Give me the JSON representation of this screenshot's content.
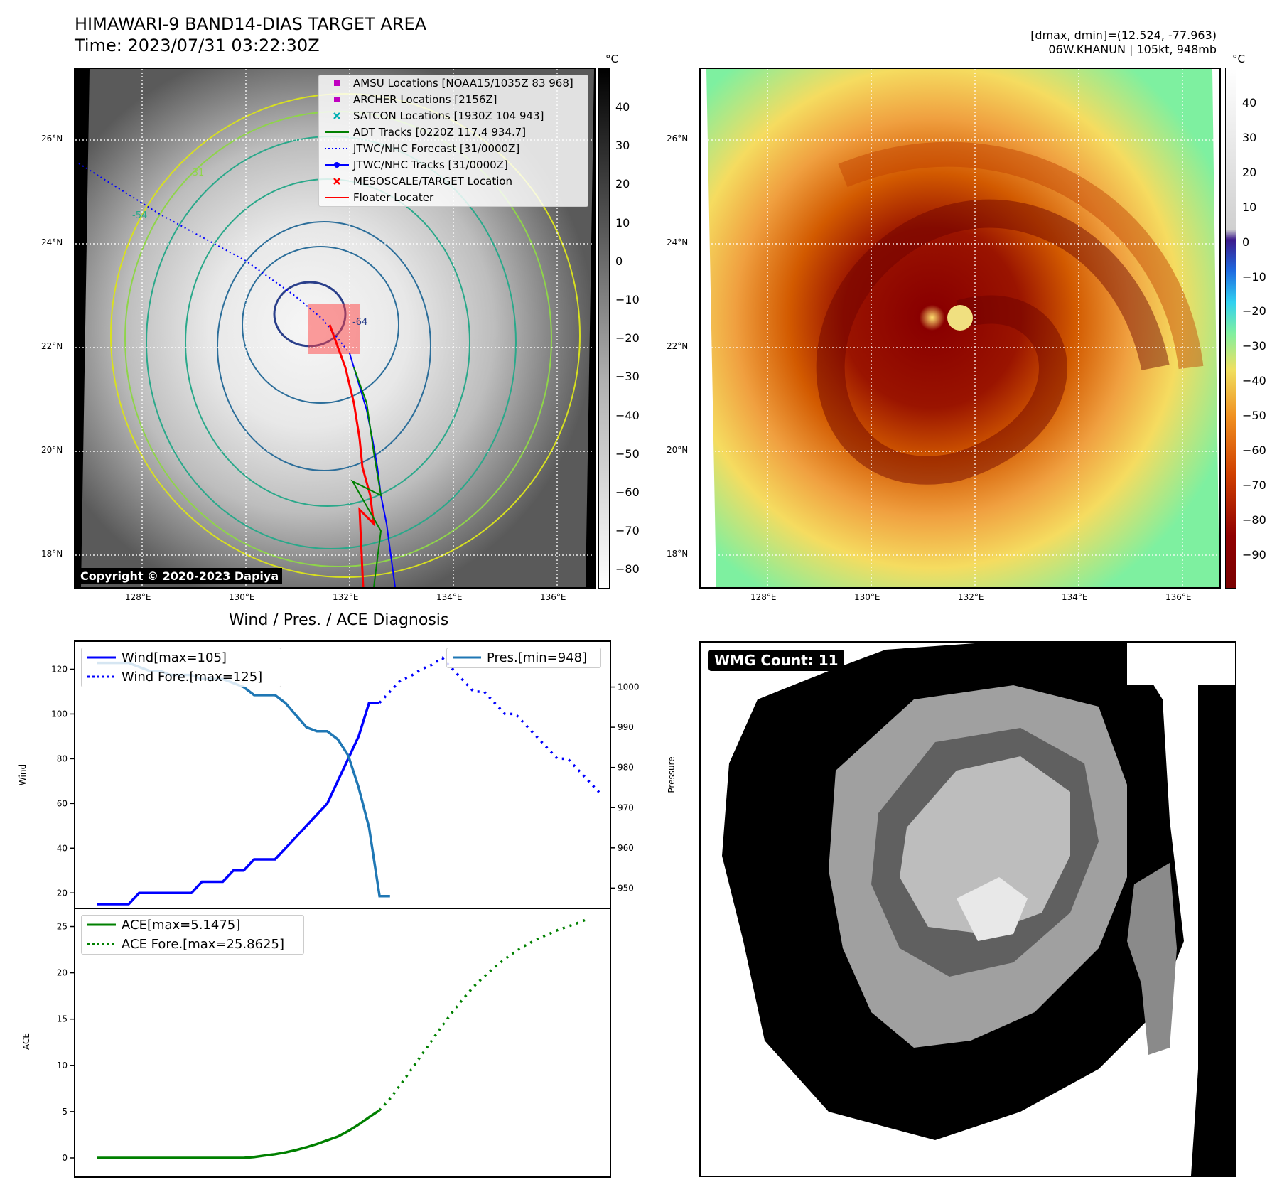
{
  "header": {
    "title_line1": "HIMAWARI-9 BAND14-DIAS TARGET AREA",
    "title_line2": "Time: 2023/07/31 03:22:30Z",
    "stats_line1": "[dmax, dmin]=(12.524, -77.963)",
    "stats_line2": "06W.KHANUN | 105kt, 948mb"
  },
  "map": {
    "lon_labels": [
      "128°E",
      "130°E",
      "132°E",
      "134°E",
      "136°E"
    ],
    "lat_labels": [
      "26°N",
      "24°N",
      "22°N",
      "20°N",
      "18°N"
    ],
    "copyright": "Copyright © 2020-2023 Dapiya",
    "contour_labels": [
      "-31",
      "-54",
      "-64"
    ],
    "legend": [
      {
        "label": "AMSU Locations [NOAA15/1035Z 83 968]",
        "color": "#c000c0",
        "symbol": "square"
      },
      {
        "label": "ARCHER Locations [2156Z]",
        "color": "#c000c0",
        "symbol": "square"
      },
      {
        "label": "SATCON Locations [1930Z 104 943]",
        "color": "#00b0b0",
        "symbol": "x"
      },
      {
        "label": "ADT Tracks [0220Z 117.4 934.7]",
        "color": "#008000",
        "symbol": "line"
      },
      {
        "label": "JTWC/NHC Forecast [31/0000Z]",
        "color": "#0000ff",
        "symbol": "dotted"
      },
      {
        "label": "JTWC/NHC Tracks [31/0000Z]",
        "color": "#0000ff",
        "symbol": "line-dot"
      },
      {
        "label": "MESOSCALE/TARGET Location",
        "color": "#ff0000",
        "symbol": "x"
      },
      {
        "label": "Floater Locater",
        "color": "#ff0000",
        "symbol": "line"
      }
    ]
  },
  "colorbar_gray": {
    "unit": "°C",
    "ticks": [
      "40",
      "30",
      "20",
      "10",
      "0",
      "−10",
      "−20",
      "−30",
      "−40",
      "−50",
      "−60",
      "−70",
      "−80"
    ]
  },
  "colorbar_color": {
    "unit": "°C",
    "ticks": [
      "40",
      "30",
      "20",
      "10",
      "0",
      "−10",
      "−20",
      "−30",
      "−40",
      "−50",
      "−60",
      "−70",
      "−80",
      "−90"
    ]
  },
  "diagnosis": {
    "title": "Wind / Pres. / ACE Diagnosis",
    "wind_ylabel": "Wind",
    "pressure_ylabel": "Pressure",
    "ace_ylabel": "ACE",
    "legend_wind": "Wind[max=105]",
    "legend_wind_fore": "Wind Fore.[max=125]",
    "legend_pres": "Pres.[min=948]",
    "legend_ace": "ACE[max=5.1475]",
    "legend_ace_fore": "ACE Fore.[max=25.8625]"
  },
  "wmg": {
    "label": "WMG Count: 11"
  },
  "chart_data": [
    {
      "type": "line",
      "title": "Wind / Pres. / ACE Diagnosis",
      "ylabel": "Wind",
      "ylim": [
        15,
        130
      ],
      "y_ticks": [
        20,
        40,
        60,
        80,
        100,
        120
      ],
      "color_wind": "#0000ff",
      "series": [
        {
          "name": "Wind[max=105]",
          "style": "solid",
          "color": "#0000ff",
          "values": [
            15,
            15,
            15,
            15,
            20,
            20,
            20,
            20,
            20,
            20,
            25,
            25,
            25,
            30,
            30,
            35,
            35,
            35,
            40,
            45,
            50,
            55,
            60,
            70,
            80,
            90,
            105,
            105
          ]
        },
        {
          "name": "Wind Fore.[max=125]",
          "style": "dotted",
          "color": "#0000ff",
          "offset": 27,
          "values": [
            105,
            110,
            115,
            117,
            120,
            122,
            125,
            120,
            115,
            110,
            110,
            105,
            100,
            100,
            95,
            90,
            85,
            80,
            80,
            75,
            70,
            65
          ]
        }
      ]
    },
    {
      "type": "line",
      "ylabel": "Pressure",
      "ylim": [
        946,
        1010
      ],
      "y_ticks": [
        950,
        960,
        970,
        980,
        990,
        1000
      ],
      "series": [
        {
          "name": "Pres.[min=948]",
          "style": "solid",
          "color": "#1f77b4",
          "values": [
            1006,
            1006,
            1006,
            1006,
            1005,
            1004,
            1004,
            1003,
            1003,
            1003,
            1002,
            1002,
            1002,
            1001,
            1000,
            998,
            998,
            998,
            996,
            993,
            990,
            989,
            989,
            987,
            983,
            975,
            965,
            948,
            948
          ]
        }
      ]
    },
    {
      "type": "line",
      "ylabel": "ACE",
      "ylim": [
        -1,
        26.5
      ],
      "y_ticks": [
        0,
        5,
        10,
        15,
        20,
        25
      ],
      "series": [
        {
          "name": "ACE[max=5.1475]",
          "style": "solid",
          "color": "#008000",
          "values": [
            0,
            0,
            0,
            0,
            0,
            0,
            0,
            0,
            0,
            0,
            0,
            0,
            0,
            0,
            0,
            0.1,
            0.25,
            0.4,
            0.6,
            0.85,
            1.15,
            1.5,
            1.9,
            2.3,
            2.9,
            3.6,
            4.4,
            5.15
          ]
        },
        {
          "name": "ACE Fore.[max=25.8625]",
          "style": "dotted",
          "color": "#008000",
          "offset": 27,
          "values": [
            5.15,
            6.4,
            7.9,
            9.5,
            11.1,
            12.7,
            14.3,
            15.8,
            17.2,
            18.5,
            19.6,
            20.6,
            21.5,
            22.3,
            23.0,
            23.6,
            24.1,
            24.6,
            25.0,
            25.4,
            25.8625
          ]
        }
      ]
    }
  ]
}
